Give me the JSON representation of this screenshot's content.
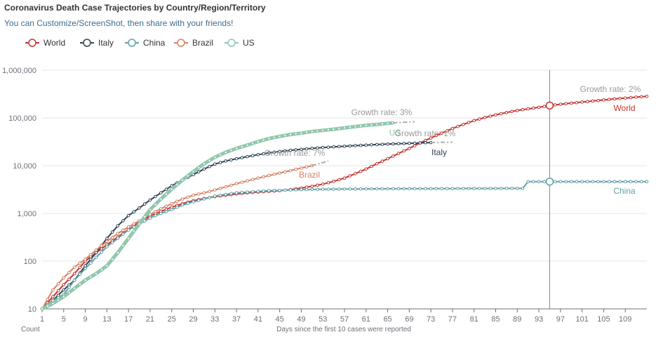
{
  "title": "Coronavirus Death Case Trajectories by Country/Region/Territory",
  "subtitle": "You can Customize/ScreenShot, then share with your friends!",
  "chart_data": {
    "type": "line",
    "title": "Coronavirus Death Case Trajectories by Country/Region/Territory",
    "xlabel": "Days since the first 10 cases were reported",
    "ylabel": "Count",
    "y_scale": "log",
    "ylim": [
      10,
      1000000
    ],
    "xlim": [
      1,
      113
    ],
    "x_ticks": [
      1,
      5,
      9,
      13,
      17,
      21,
      25,
      29,
      33,
      37,
      41,
      45,
      49,
      53,
      57,
      61,
      65,
      69,
      73,
      77,
      81,
      85,
      89,
      93,
      97,
      101,
      105,
      109
    ],
    "y_ticks": [
      10,
      100,
      1000,
      10000,
      100000,
      1000000
    ],
    "y_tick_labels": [
      "10",
      "100",
      "1,000",
      "10,000",
      "100,000",
      "1,000,000"
    ],
    "grid": true,
    "legend_position": "top-left",
    "crosshair_x": 95,
    "series": [
      {
        "name": "World",
        "color": "#c23531",
        "end_label": "World",
        "points": [
          [
            1,
            10
          ],
          [
            3,
            18
          ],
          [
            5,
            32
          ],
          [
            7,
            55
          ],
          [
            9,
            100
          ],
          [
            11,
            150
          ],
          [
            13,
            220
          ],
          [
            15,
            320
          ],
          [
            17,
            460
          ],
          [
            19,
            650
          ],
          [
            21,
            880
          ],
          [
            23,
            1100
          ],
          [
            25,
            1350
          ],
          [
            27,
            1600
          ],
          [
            29,
            1850
          ],
          [
            31,
            2050
          ],
          [
            33,
            2250
          ],
          [
            35,
            2400
          ],
          [
            37,
            2550
          ],
          [
            39,
            2700
          ],
          [
            41,
            2800
          ],
          [
            43,
            2900
          ],
          [
            45,
            3000
          ],
          [
            47,
            3150
          ],
          [
            49,
            3400
          ],
          [
            51,
            3700
          ],
          [
            53,
            4100
          ],
          [
            55,
            4700
          ],
          [
            57,
            5500
          ],
          [
            59,
            6800
          ],
          [
            61,
            8500
          ],
          [
            63,
            11000
          ],
          [
            65,
            14000
          ],
          [
            67,
            18000
          ],
          [
            69,
            23000
          ],
          [
            71,
            30000
          ],
          [
            73,
            38000
          ],
          [
            75,
            48000
          ],
          [
            77,
            60000
          ],
          [
            79,
            73000
          ],
          [
            81,
            88000
          ],
          [
            83,
            102000
          ],
          [
            85,
            116000
          ],
          [
            87,
            130000
          ],
          [
            89,
            143000
          ],
          [
            91,
            155000
          ],
          [
            93,
            167000
          ],
          [
            95,
            182000
          ],
          [
            97,
            193000
          ],
          [
            99,
            204000
          ],
          [
            101,
            215000
          ],
          [
            103,
            226000
          ],
          [
            105,
            238000
          ],
          [
            107,
            250000
          ],
          [
            109,
            261000
          ],
          [
            111,
            272000
          ],
          [
            113,
            283000
          ]
        ]
      },
      {
        "name": "Italy",
        "color": "#2f4554",
        "end_label": "Italy",
        "points": [
          [
            1,
            10
          ],
          [
            3,
            15
          ],
          [
            5,
            25
          ],
          [
            7,
            40
          ],
          [
            9,
            80
          ],
          [
            11,
            150
          ],
          [
            13,
            300
          ],
          [
            15,
            550
          ],
          [
            17,
            900
          ],
          [
            19,
            1300
          ],
          [
            21,
            1900
          ],
          [
            23,
            2700
          ],
          [
            25,
            3800
          ],
          [
            27,
            5000
          ],
          [
            29,
            6500
          ],
          [
            31,
            8500
          ],
          [
            33,
            10800
          ],
          [
            35,
            12500
          ],
          [
            37,
            14000
          ],
          [
            39,
            15500
          ],
          [
            41,
            17000
          ],
          [
            43,
            18500
          ],
          [
            45,
            19800
          ],
          [
            47,
            21000
          ],
          [
            49,
            22000
          ],
          [
            51,
            23000
          ],
          [
            53,
            24000
          ],
          [
            55,
            24800
          ],
          [
            57,
            25500
          ],
          [
            59,
            26300
          ],
          [
            61,
            27000
          ],
          [
            63,
            27700
          ],
          [
            65,
            28300
          ],
          [
            67,
            28900
          ],
          [
            69,
            29400
          ],
          [
            71,
            30000
          ],
          [
            73,
            30500
          ]
        ],
        "growth": {
          "text": "Growth rate: 1%",
          "to_x": 77,
          "to_y": 31200
        }
      },
      {
        "name": "China",
        "color": "#61a0a8",
        "end_label": "China",
        "points": [
          [
            1,
            10
          ],
          [
            3,
            15
          ],
          [
            5,
            20
          ],
          [
            7,
            40
          ],
          [
            9,
            70
          ],
          [
            11,
            120
          ],
          [
            13,
            200
          ],
          [
            15,
            300
          ],
          [
            17,
            450
          ],
          [
            19,
            600
          ],
          [
            21,
            800
          ],
          [
            23,
            1000
          ],
          [
            25,
            1200
          ],
          [
            27,
            1500
          ],
          [
            29,
            1750
          ],
          [
            31,
            2000
          ],
          [
            33,
            2300
          ],
          [
            35,
            2500
          ],
          [
            37,
            2700
          ],
          [
            39,
            2800
          ],
          [
            41,
            2900
          ],
          [
            43,
            3000
          ],
          [
            45,
            3050
          ],
          [
            47,
            3100
          ],
          [
            49,
            3150
          ],
          [
            51,
            3170
          ],
          [
            53,
            3200
          ],
          [
            55,
            3220
          ],
          [
            57,
            3240
          ],
          [
            59,
            3250
          ],
          [
            61,
            3260
          ],
          [
            63,
            3270
          ],
          [
            65,
            3280
          ],
          [
            67,
            3290
          ],
          [
            69,
            3300
          ],
          [
            71,
            3305
          ],
          [
            73,
            3310
          ],
          [
            75,
            3315
          ],
          [
            77,
            3320
          ],
          [
            79,
            3325
          ],
          [
            81,
            3328
          ],
          [
            83,
            3330
          ],
          [
            85,
            3332
          ],
          [
            87,
            3333
          ],
          [
            89,
            3335
          ],
          [
            90,
            3340
          ],
          [
            91,
            4632
          ],
          [
            93,
            4633
          ],
          [
            95,
            4634
          ],
          [
            97,
            4634
          ],
          [
            99,
            4634
          ],
          [
            101,
            4634
          ],
          [
            103,
            4636
          ],
          [
            105,
            4636
          ],
          [
            107,
            4636
          ],
          [
            109,
            4637
          ],
          [
            111,
            4637
          ],
          [
            113,
            4637
          ]
        ]
      },
      {
        "name": "Brazil",
        "color": "#d48265",
        "end_label": "Brazil",
        "points": [
          [
            1,
            10
          ],
          [
            3,
            25
          ],
          [
            5,
            45
          ],
          [
            7,
            75
          ],
          [
            9,
            110
          ],
          [
            11,
            170
          ],
          [
            13,
            260
          ],
          [
            15,
            380
          ],
          [
            17,
            520
          ],
          [
            19,
            700
          ],
          [
            21,
            950
          ],
          [
            23,
            1250
          ],
          [
            25,
            1600
          ],
          [
            27,
            2000
          ],
          [
            29,
            2400
          ],
          [
            31,
            2700
          ],
          [
            33,
            3100
          ],
          [
            35,
            3600
          ],
          [
            37,
            4200
          ],
          [
            39,
            4800
          ],
          [
            41,
            5500
          ],
          [
            43,
            6200
          ],
          [
            45,
            7000
          ],
          [
            47,
            7900
          ],
          [
            49,
            8900
          ],
          [
            51,
            10000
          ]
        ],
        "growth": {
          "text": "Growth rate: 7%",
          "to_x": 54,
          "to_y": 12500
        }
      },
      {
        "name": "US",
        "color": "#91c7ae",
        "end_label": "US",
        "thick": true,
        "points": [
          [
            1,
            10
          ],
          [
            3,
            13
          ],
          [
            5,
            18
          ],
          [
            7,
            27
          ],
          [
            9,
            40
          ],
          [
            11,
            55
          ],
          [
            13,
            80
          ],
          [
            15,
            150
          ],
          [
            17,
            300
          ],
          [
            19,
            600
          ],
          [
            21,
            1200
          ],
          [
            23,
            2000
          ],
          [
            25,
            3200
          ],
          [
            27,
            5000
          ],
          [
            29,
            7500
          ],
          [
            31,
            11000
          ],
          [
            33,
            15000
          ],
          [
            35,
            19000
          ],
          [
            37,
            23000
          ],
          [
            39,
            27000
          ],
          [
            41,
            32000
          ],
          [
            43,
            37000
          ],
          [
            45,
            41000
          ],
          [
            47,
            45000
          ],
          [
            49,
            48000
          ],
          [
            51,
            52000
          ],
          [
            53,
            55000
          ],
          [
            55,
            58000
          ],
          [
            57,
            62000
          ],
          [
            59,
            66000
          ],
          [
            61,
            70000
          ],
          [
            63,
            73000
          ],
          [
            65,
            77000
          ],
          [
            66,
            79000
          ]
        ],
        "growth": {
          "text": "Growth rate: 3%",
          "to_x": 70,
          "to_y": 83000
        }
      }
    ],
    "growth_labels": [
      {
        "series": "US",
        "text": "Growth rate: 3%"
      },
      {
        "series": "Italy",
        "text": "Growth rate: 1%"
      },
      {
        "series": "Brazil",
        "text": "Growth rate: 7%"
      },
      {
        "series": "World",
        "text": "Growth rate: 2%"
      }
    ]
  }
}
